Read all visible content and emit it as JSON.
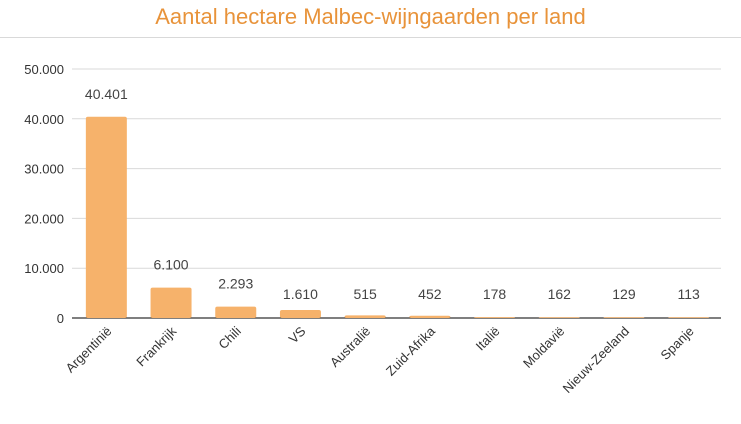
{
  "chart_data": {
    "type": "bar",
    "title": "Aantal hectare Malbec-wijngaarden per land",
    "xlabel": "",
    "ylabel": "",
    "categories": [
      "Argentinië",
      "Frankrijk",
      "Chili",
      "VS",
      "Australië",
      "Zuid-Afrika",
      "Italië",
      "Moldavië",
      "Nieuw-Zeeland",
      "Spanje"
    ],
    "values": [
      40401,
      6100,
      2293,
      1610,
      515,
      452,
      178,
      162,
      129,
      113
    ],
    "value_labels": [
      "40.401",
      "6.100",
      "2.293",
      "1.610",
      "515",
      "452",
      "178",
      "162",
      "129",
      "113"
    ],
    "ylim": [
      0,
      50000
    ],
    "yticks": [
      0,
      10000,
      20000,
      30000,
      40000,
      50000
    ],
    "ytick_labels": [
      "0",
      "10.000",
      "20.000",
      "30.000",
      "40.000",
      "50.000"
    ],
    "grid": true,
    "legend": "none",
    "colors": {
      "bar": "#f6b26b",
      "title": "#e8933a",
      "grid": "#d9d9d9",
      "axis": "#333333"
    }
  }
}
